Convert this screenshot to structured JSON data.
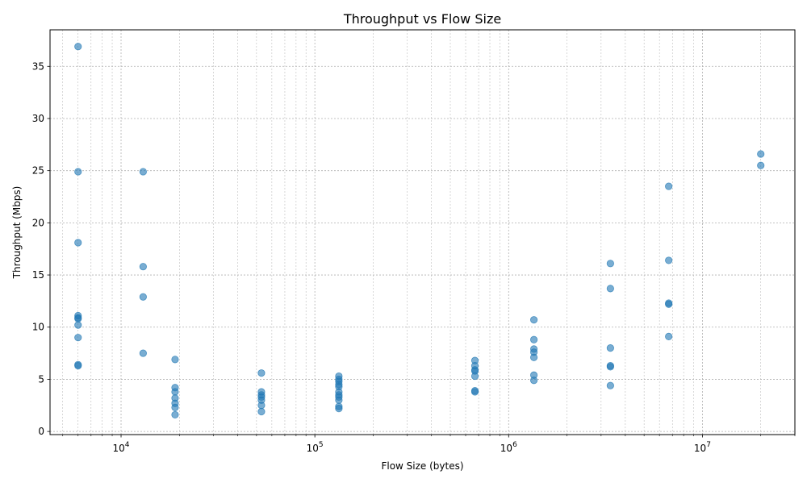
{
  "chart_data": {
    "type": "scatter",
    "title": "Throughput vs Flow Size",
    "xlabel": "Flow Size (bytes)",
    "ylabel": "Throughput (Mbps)",
    "xscale": "log",
    "xlim": [
      4300,
      30000000
    ],
    "ylim": [
      -0.3,
      38.5
    ],
    "grid": true,
    "marker_color": "#1f77b4",
    "x_ticks": [
      {
        "value": 10000,
        "base": "10",
        "exp": "4"
      },
      {
        "value": 100000,
        "base": "10",
        "exp": "5"
      },
      {
        "value": 1000000,
        "base": "10",
        "exp": "6"
      },
      {
        "value": 10000000,
        "base": "10",
        "exp": "7"
      }
    ],
    "y_ticks": [
      0,
      5,
      10,
      15,
      20,
      25,
      30,
      35
    ],
    "points": [
      {
        "x": 6000,
        "y": 36.9
      },
      {
        "x": 6000,
        "y": 24.9
      },
      {
        "x": 6000,
        "y": 18.1
      },
      {
        "x": 6000,
        "y": 11.1
      },
      {
        "x": 6000,
        "y": 10.9
      },
      {
        "x": 6000,
        "y": 10.8
      },
      {
        "x": 6000,
        "y": 10.2
      },
      {
        "x": 6000,
        "y": 9.0
      },
      {
        "x": 6000,
        "y": 6.4
      },
      {
        "x": 6000,
        "y": 6.3
      },
      {
        "x": 13000,
        "y": 24.9
      },
      {
        "x": 13000,
        "y": 15.8
      },
      {
        "x": 13000,
        "y": 12.9
      },
      {
        "x": 13000,
        "y": 7.5
      },
      {
        "x": 19000,
        "y": 6.9
      },
      {
        "x": 19000,
        "y": 4.2
      },
      {
        "x": 19000,
        "y": 3.8
      },
      {
        "x": 19000,
        "y": 3.2
      },
      {
        "x": 19000,
        "y": 2.7
      },
      {
        "x": 19000,
        "y": 2.3
      },
      {
        "x": 19000,
        "y": 1.6
      },
      {
        "x": 53000,
        "y": 5.6
      },
      {
        "x": 53000,
        "y": 3.8
      },
      {
        "x": 53000,
        "y": 3.5
      },
      {
        "x": 53000,
        "y": 3.3
      },
      {
        "x": 53000,
        "y": 3.0
      },
      {
        "x": 53000,
        "y": 2.5
      },
      {
        "x": 53000,
        "y": 1.9
      },
      {
        "x": 133000,
        "y": 5.3
      },
      {
        "x": 133000,
        "y": 5.0
      },
      {
        "x": 133000,
        "y": 4.8
      },
      {
        "x": 133000,
        "y": 4.5
      },
      {
        "x": 133000,
        "y": 4.3
      },
      {
        "x": 133000,
        "y": 3.8
      },
      {
        "x": 133000,
        "y": 3.5
      },
      {
        "x": 133000,
        "y": 3.3
      },
      {
        "x": 133000,
        "y": 3.0
      },
      {
        "x": 133000,
        "y": 2.4
      },
      {
        "x": 133000,
        "y": 2.2
      },
      {
        "x": 670000,
        "y": 6.8
      },
      {
        "x": 670000,
        "y": 6.3
      },
      {
        "x": 670000,
        "y": 5.9
      },
      {
        "x": 670000,
        "y": 5.8
      },
      {
        "x": 670000,
        "y": 5.3
      },
      {
        "x": 670000,
        "y": 3.9
      },
      {
        "x": 670000,
        "y": 3.8
      },
      {
        "x": 1350000,
        "y": 10.7
      },
      {
        "x": 1350000,
        "y": 8.8
      },
      {
        "x": 1350000,
        "y": 7.9
      },
      {
        "x": 1350000,
        "y": 7.6
      },
      {
        "x": 1350000,
        "y": 7.1
      },
      {
        "x": 1350000,
        "y": 5.4
      },
      {
        "x": 1350000,
        "y": 4.9
      },
      {
        "x": 3350000,
        "y": 16.1
      },
      {
        "x": 3350000,
        "y": 13.7
      },
      {
        "x": 3350000,
        "y": 8.0
      },
      {
        "x": 3350000,
        "y": 6.3
      },
      {
        "x": 3350000,
        "y": 6.2
      },
      {
        "x": 3350000,
        "y": 4.4
      },
      {
        "x": 6700000,
        "y": 23.5
      },
      {
        "x": 6700000,
        "y": 16.4
      },
      {
        "x": 6700000,
        "y": 12.3
      },
      {
        "x": 6700000,
        "y": 12.2
      },
      {
        "x": 6700000,
        "y": 9.1
      },
      {
        "x": 20000000,
        "y": 26.6
      },
      {
        "x": 20000000,
        "y": 25.5
      }
    ]
  }
}
